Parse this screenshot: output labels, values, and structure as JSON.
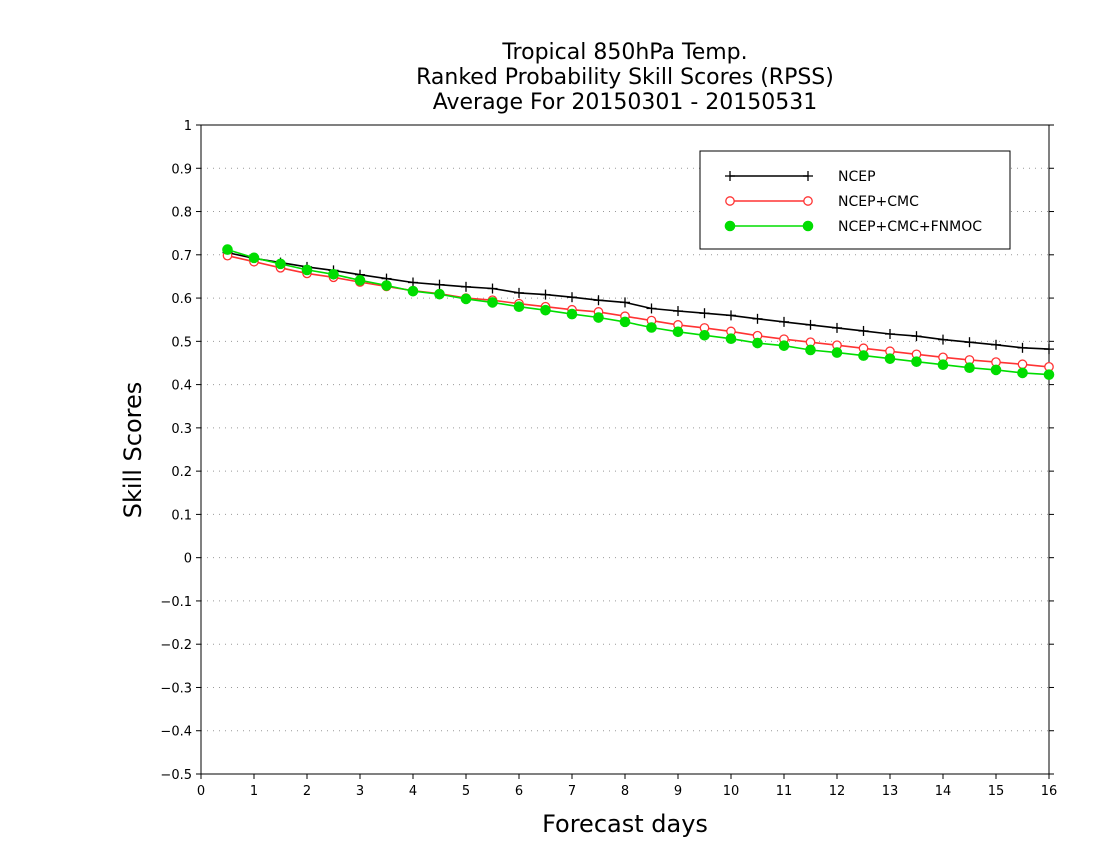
{
  "chart_data": {
    "type": "line",
    "title_lines": [
      "Tropical 850hPa Temp.",
      "Ranked Probability Skill Scores (RPSS)",
      "Average For 20150301 - 20150531"
    ],
    "xlabel": "Forecast days",
    "ylabel": "Skill Scores",
    "xlim": [
      0,
      16
    ],
    "ylim": [
      -0.5,
      1
    ],
    "x_ticks": [
      0,
      1,
      2,
      3,
      4,
      5,
      6,
      7,
      8,
      9,
      10,
      11,
      12,
      13,
      14,
      15,
      16
    ],
    "y_ticks": [
      -0.5,
      -0.4,
      -0.3,
      -0.2,
      -0.1,
      0,
      0.1,
      0.2,
      0.3,
      0.4,
      0.5,
      0.6,
      0.7,
      0.8,
      0.9,
      1
    ],
    "x_tick_labels": [
      "0",
      "1",
      "2",
      "3",
      "4",
      "5",
      "6",
      "7",
      "8",
      "9",
      "10",
      "11",
      "12",
      "13",
      "14",
      "15",
      "16"
    ],
    "y_tick_labels": [
      "−0.5",
      "−0.4",
      "−0.3",
      "−0.2",
      "−0.1",
      "0",
      "0.1",
      "0.2",
      "0.3",
      "0.4",
      "0.5",
      "0.6",
      "0.7",
      "0.8",
      "0.9",
      "1"
    ],
    "grid": "horizontal dotted",
    "legend_position": "top-right",
    "x": [
      0.5,
      1,
      1.5,
      2,
      2.5,
      3,
      3.5,
      4,
      4.5,
      5,
      5.5,
      6,
      6.5,
      7,
      7.5,
      8,
      8.5,
      9,
      9.5,
      10,
      10.5,
      11,
      11.5,
      12,
      12.5,
      13,
      13.5,
      14,
      14.5,
      15,
      15.5,
      16
    ],
    "series": [
      {
        "name": "NCEP",
        "color": "#000000",
        "marker": "plus",
        "values": [
          0.705,
          0.692,
          0.682,
          0.672,
          0.664,
          0.654,
          0.645,
          0.636,
          0.631,
          0.626,
          0.622,
          0.612,
          0.608,
          0.602,
          0.595,
          0.59,
          0.576,
          0.57,
          0.565,
          0.56,
          0.552,
          0.545,
          0.538,
          0.531,
          0.524,
          0.517,
          0.512,
          0.504,
          0.498,
          0.492,
          0.485,
          0.482
        ]
      },
      {
        "name": "NCEP+CMC",
        "color": "#ff3333",
        "marker": "open-circle",
        "values": [
          0.698,
          0.684,
          0.67,
          0.657,
          0.648,
          0.637,
          0.627,
          0.617,
          0.61,
          0.6,
          0.595,
          0.587,
          0.58,
          0.573,
          0.568,
          0.558,
          0.548,
          0.538,
          0.531,
          0.523,
          0.513,
          0.505,
          0.498,
          0.491,
          0.484,
          0.477,
          0.47,
          0.463,
          0.457,
          0.452,
          0.447,
          0.441
        ]
      },
      {
        "name": "NCEP+CMC+FNMOC",
        "color": "#00dd00",
        "marker": "filled-circle",
        "values": [
          0.712,
          0.693,
          0.679,
          0.665,
          0.655,
          0.641,
          0.629,
          0.616,
          0.609,
          0.598,
          0.59,
          0.58,
          0.572,
          0.563,
          0.555,
          0.545,
          0.532,
          0.522,
          0.514,
          0.506,
          0.496,
          0.49,
          0.48,
          0.474,
          0.467,
          0.46,
          0.453,
          0.446,
          0.439,
          0.434,
          0.427,
          0.423
        ]
      }
    ]
  }
}
